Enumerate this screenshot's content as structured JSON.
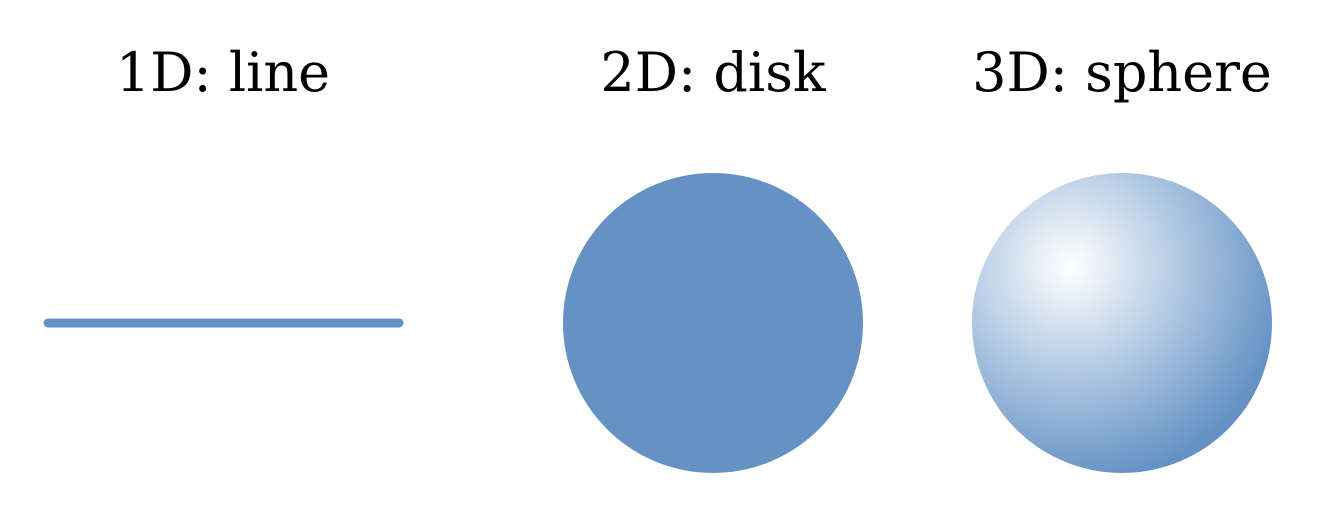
{
  "panels": [
    {
      "label": "1D: line",
      "shape": "line"
    },
    {
      "label": "2D: disk",
      "shape": "disk"
    },
    {
      "label": "3D: sphere",
      "shape": "sphere"
    }
  ],
  "colors": {
    "fill": "#6592c4",
    "highlight": "#ffffff",
    "background": "#ffffff",
    "text": "#000000"
  }
}
